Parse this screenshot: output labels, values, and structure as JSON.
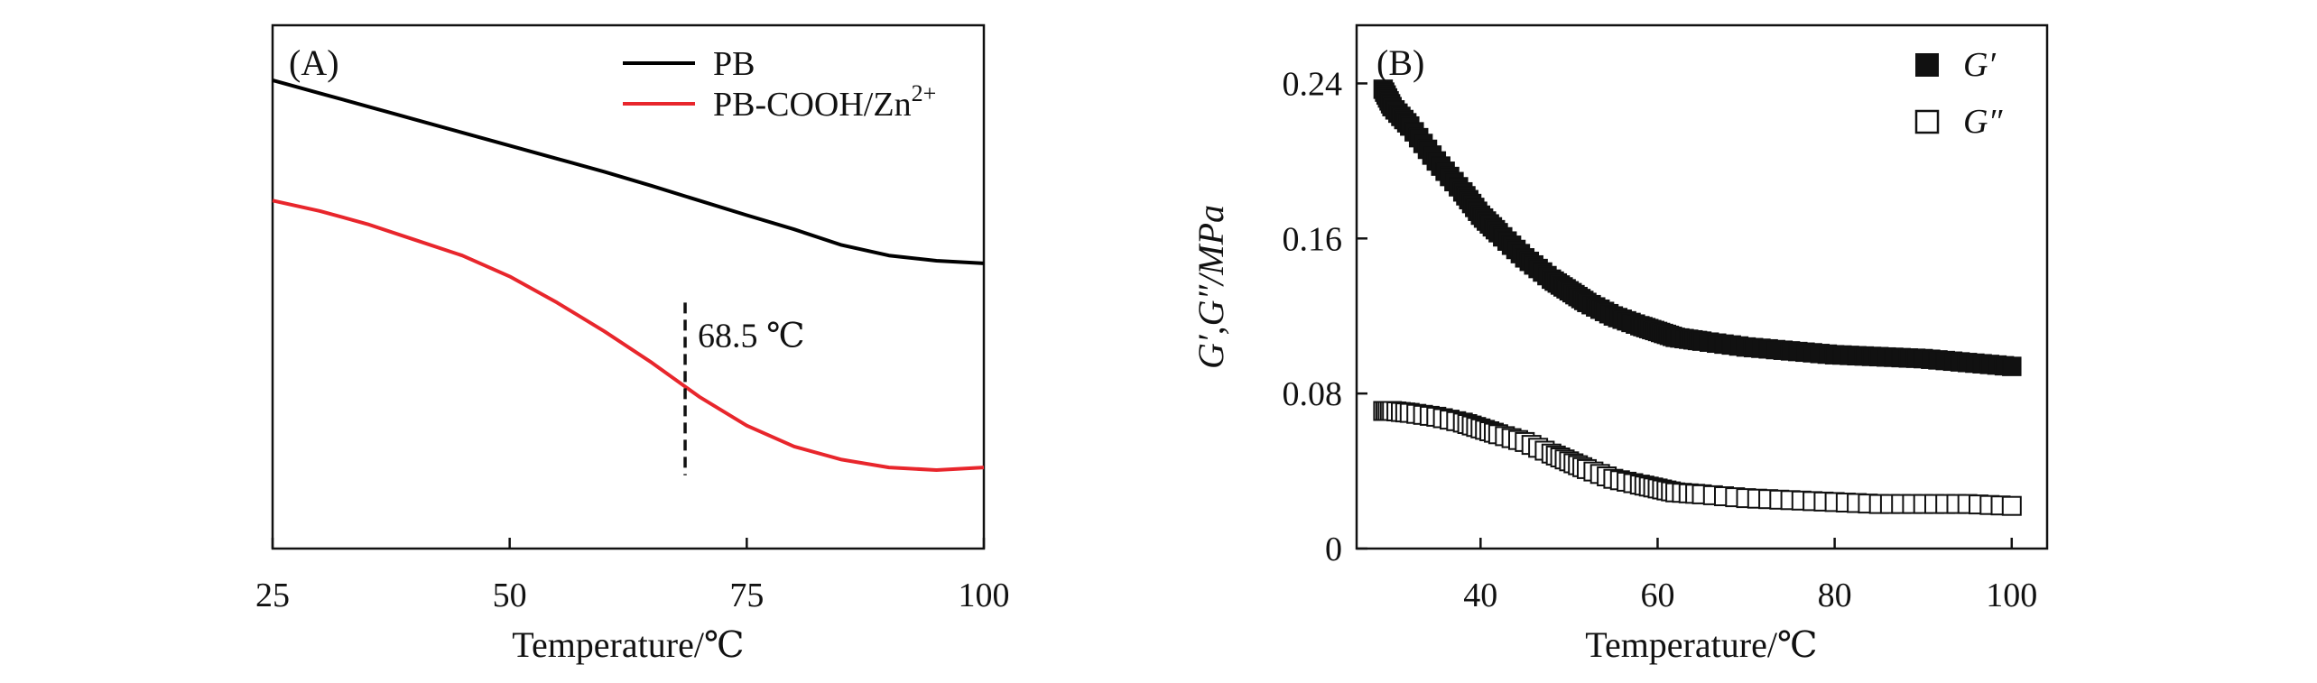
{
  "chart_data": [
    {
      "type": "line",
      "panel_label": "(A)",
      "xlabel": "Temperature/℃",
      "ylabel": "",
      "xlim": [
        25,
        100
      ],
      "ylim": [
        0,
        1
      ],
      "x_ticks": [
        "25",
        "50",
        "75",
        "100"
      ],
      "x_tick_values": [
        25,
        50,
        75,
        100
      ],
      "legend_position": "top-right",
      "series": [
        {
          "name": "PB",
          "color": "#000000",
          "x": [
            25,
            30,
            35,
            40,
            45,
            50,
            55,
            60,
            65,
            70,
            75,
            80,
            85,
            90,
            95,
            100
          ],
          "y": [
            0.895,
            0.87,
            0.845,
            0.82,
            0.795,
            0.77,
            0.745,
            0.72,
            0.693,
            0.665,
            0.637,
            0.61,
            0.58,
            0.56,
            0.55,
            0.545
          ]
        },
        {
          "name": "PB-COOH/Zn2+",
          "legend_base": "PB-COOH/Zn",
          "legend_sup": "2+",
          "color": "#e8262c",
          "x": [
            25,
            30,
            35,
            40,
            45,
            50,
            55,
            60,
            65,
            70,
            75,
            80,
            85,
            90,
            95,
            100
          ],
          "y": [
            0.665,
            0.645,
            0.62,
            0.59,
            0.56,
            0.52,
            0.47,
            0.415,
            0.355,
            0.29,
            0.235,
            0.195,
            0.17,
            0.155,
            0.15,
            0.155
          ]
        }
      ],
      "annotations": [
        {
          "text": "68.5 ℃",
          "x": 68.5,
          "y_start": 0.14,
          "y_end": 0.47
        }
      ]
    },
    {
      "type": "scatter",
      "panel_label": "(B)",
      "xlabel": "Temperature/℃",
      "ylabel": "G′,G″/MPa",
      "xlim": [
        26,
        104
      ],
      "ylim": [
        0,
        0.27
      ],
      "x_ticks": [
        "40",
        "60",
        "80",
        "100"
      ],
      "x_tick_values": [
        40,
        60,
        80,
        100
      ],
      "y_ticks": [
        "0",
        "0.08",
        "0.16",
        "0.24"
      ],
      "y_tick_values": [
        0,
        0.08,
        0.16,
        0.24
      ],
      "legend_position": "top-right",
      "series": [
        {
          "name": "G′",
          "marker": "filled-square",
          "color": "#111111",
          "x": [
            29,
            30,
            32,
            35,
            38,
            40,
            42,
            45,
            48,
            50,
            52,
            55,
            58,
            60,
            62,
            65,
            70,
            75,
            80,
            85,
            90,
            95,
            100
          ],
          "y": [
            0.237,
            0.228,
            0.218,
            0.2,
            0.184,
            0.172,
            0.163,
            0.15,
            0.139,
            0.133,
            0.127,
            0.12,
            0.115,
            0.112,
            0.109,
            0.107,
            0.104,
            0.102,
            0.1,
            0.099,
            0.098,
            0.096,
            0.094
          ]
        },
        {
          "name": "G″",
          "marker": "open-square",
          "color": "#111111",
          "x": [
            29,
            30,
            32,
            35,
            38,
            40,
            42,
            45,
            48,
            50,
            52,
            55,
            58,
            60,
            62,
            65,
            70,
            75,
            80,
            85,
            90,
            95,
            100
          ],
          "y": [
            0.071,
            0.071,
            0.07,
            0.068,
            0.065,
            0.062,
            0.059,
            0.055,
            0.049,
            0.045,
            0.041,
            0.036,
            0.033,
            0.031,
            0.029,
            0.028,
            0.026,
            0.025,
            0.024,
            0.023,
            0.023,
            0.023,
            0.022
          ]
        }
      ]
    }
  ]
}
